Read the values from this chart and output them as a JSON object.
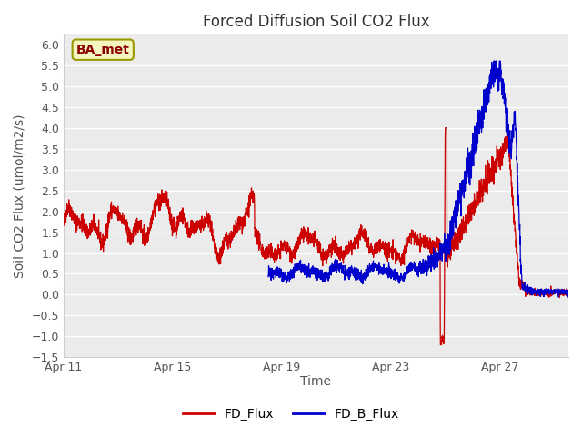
{
  "title": "Forced Diffusion Soil CO2 Flux",
  "xlabel": "Time",
  "ylabel": "Soil CO2 Flux (umol/m2/s)",
  "ylim": [
    -1.5,
    6.25
  ],
  "yticks": [
    -1.5,
    -1.0,
    -0.5,
    0.0,
    0.5,
    1.0,
    1.5,
    2.0,
    2.5,
    3.0,
    3.5,
    4.0,
    4.5,
    5.0,
    5.5,
    6.0
  ],
  "xtick_labels": [
    "Apr 11",
    "Apr 15",
    "Apr 19",
    "Apr 23",
    "Apr 27"
  ],
  "xtick_positions": [
    0,
    4,
    8,
    12,
    16
  ],
  "fd_flux_color": "#cc0000",
  "fd_b_flux_color": "#0000cc",
  "fig_bg_color": "#ffffff",
  "plot_bg_color": "#ebebeb",
  "legend_label_fd": "FD_Flux",
  "legend_label_fd_b": "FD_B_Flux",
  "annotation_text": "BA_met",
  "annotation_bg": "#f5f5c0",
  "annotation_border": "#999900",
  "annotation_text_color": "#8b0000",
  "title_fontsize": 12,
  "axis_label_fontsize": 10,
  "tick_fontsize": 9,
  "legend_fontsize": 10,
  "grid_color": "#ffffff",
  "grid_linewidth": 1.0,
  "line_width": 0.9,
  "days_total": 18.5,
  "xlim_start": 0,
  "xlim_end": 18.5
}
